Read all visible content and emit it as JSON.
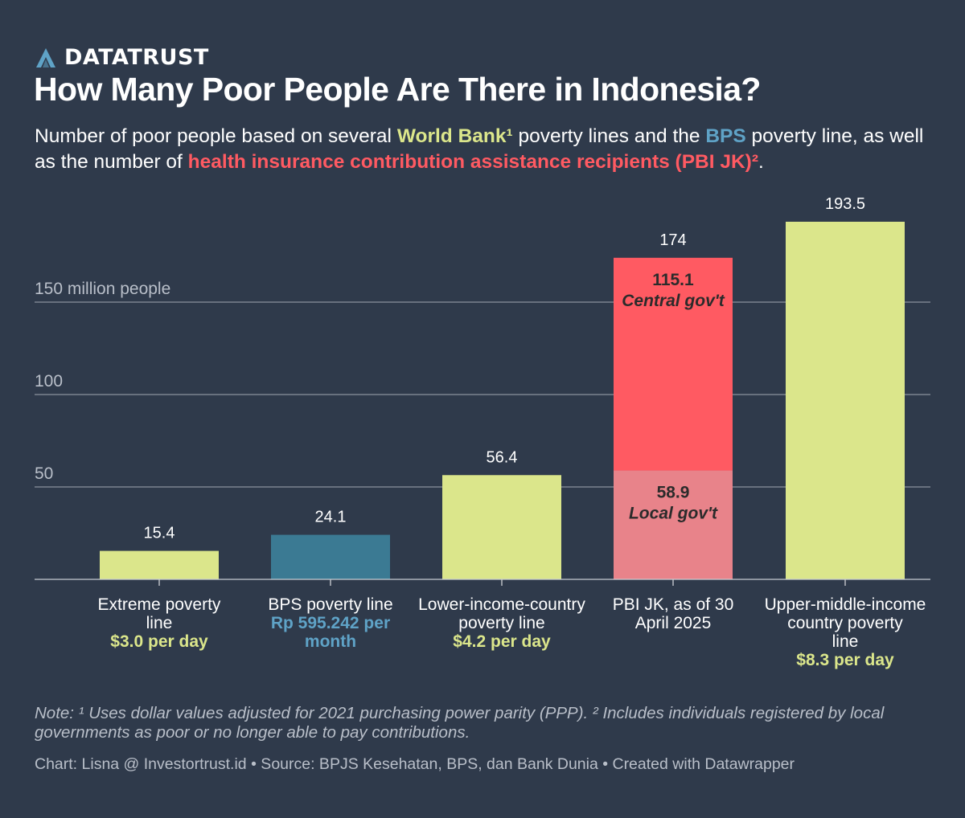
{
  "brand": {
    "name": "DATATRUST",
    "logo_icon": "triangle-a-logo-icon",
    "logo_color": "#5fa3c7"
  },
  "title": "How Many Poor People Are There in Indonesia?",
  "subtitle": {
    "part1": "Number of poor people based on several ",
    "world_bank": "World Bank¹",
    "part2": " poverty lines and the ",
    "bps": "BPS",
    "part3": " poverty line, as well as the number of ",
    "pbi": "health insurance contribution assistance recipients (PBI JK)²",
    "part4": "."
  },
  "colors": {
    "background": "#2f3a4b",
    "world_bank": "#dbe68b",
    "bps": "#3b7a93",
    "bps_text": "#5fa3c7",
    "central_gov": "#ff5a62",
    "local_gov": "#e8838a",
    "gridline": "#8b929d",
    "muted_text": "#b9bfc9"
  },
  "chart_data": {
    "type": "bar",
    "stacked": true,
    "y_unit_label": "150 million people",
    "y_ticks": [
      {
        "value": 50,
        "label": "50"
      },
      {
        "value": 100,
        "label": "100"
      },
      {
        "value": 150,
        "label": "150 million people"
      }
    ],
    "ylim": [
      0,
      200
    ],
    "grid": true,
    "categories": [
      {
        "label": "Extreme poverty line",
        "sublabel": "$3.0 per day",
        "sublabel_color": "#dbe68b",
        "total": 15.4,
        "total_label": "15.4"
      },
      {
        "label": "BPS poverty line",
        "sublabel": "Rp 595.242 per month",
        "sublabel_color": "#5fa3c7",
        "total": 24.1,
        "total_label": "24.1"
      },
      {
        "label": "Lower-income-country poverty line",
        "sublabel": "$4.2 per day",
        "sublabel_color": "#dbe68b",
        "total": 56.4,
        "total_label": "56.4"
      },
      {
        "label": "PBI JK, as of 30 April 2025",
        "sublabel": "",
        "sublabel_color": "#dbe68b",
        "total": 174,
        "total_label": "174"
      },
      {
        "label": "Upper-middle-income country poverty line",
        "sublabel": "$8.3 per day",
        "sublabel_color": "#dbe68b",
        "total": 193.5,
        "total_label": "193.5"
      }
    ],
    "segments": [
      [
        {
          "value": 15.4,
          "color": "#dbe68b"
        }
      ],
      [
        {
          "value": 24.1,
          "color": "#3b7a93"
        }
      ],
      [
        {
          "value": 56.4,
          "color": "#dbe68b"
        }
      ],
      [
        {
          "value": 58.9,
          "color": "#e8838a",
          "label": "58.9",
          "sublabel": "Local gov't"
        },
        {
          "value": 115.1,
          "color": "#ff5a62",
          "label": "115.1",
          "sublabel": "Central gov't"
        }
      ],
      [
        {
          "value": 193.5,
          "color": "#dbe68b"
        }
      ]
    ]
  },
  "note": "Note: ¹ Uses dollar values adjusted for 2021 purchasing power parity (PPP). ² Includes individuals registered by local governments as poor or no longer able to pay contributions.",
  "credits": "Chart: Lisna @ Investortrust.id • Source: BPJS Kesehatan, BPS, dan Bank Dunia • Created with Datawrapper"
}
